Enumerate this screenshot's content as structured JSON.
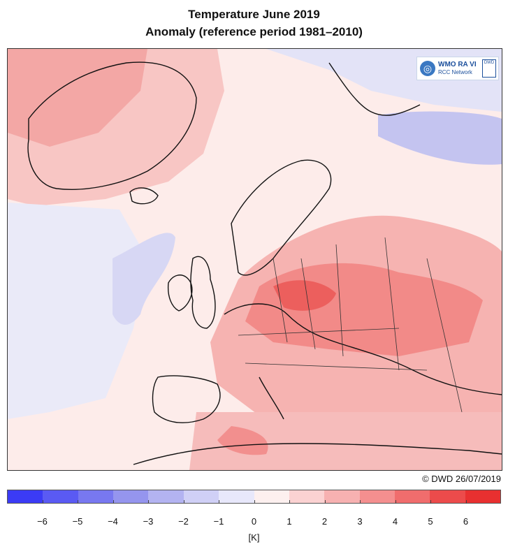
{
  "title_line1": "Temperature June 2019",
  "title_line2": "Anomaly (reference period 1981–2010)",
  "credit": "© DWD 26/07/2019",
  "logo": {
    "line1": "WMO RA VI",
    "line2": "RCC Network",
    "badge": "DWD"
  },
  "colorbar": {
    "unit": "[K]",
    "ticks": [
      "−6",
      "−5",
      "−4",
      "−3",
      "−2",
      "−1",
      "0",
      "1",
      "2",
      "3",
      "4",
      "5",
      "6"
    ],
    "colors": [
      "#3b3bf5",
      "#5a5af3",
      "#7878f0",
      "#9595ee",
      "#b3b3f1",
      "#d0d0f6",
      "#e8e8fb",
      "#fdf0ef",
      "#fbd2d2",
      "#f7b1b1",
      "#f48f8f",
      "#f06d6d",
      "#ec4b4b",
      "#e83030"
    ]
  }
}
